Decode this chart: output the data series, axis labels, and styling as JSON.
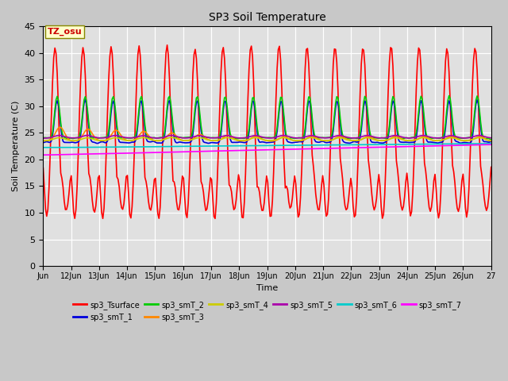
{
  "title": "SP3 Soil Temperature",
  "ylabel": "Soil Temperature (C)",
  "xlabel": "Time",
  "annotation": "TZ_osu",
  "ylim": [
    0,
    45
  ],
  "fig_bg_color": "#c8c8c8",
  "plot_bg_color": "#e0e0e0",
  "legend_entries": [
    "sp3_Tsurface",
    "sp3_smT_1",
    "sp3_smT_2",
    "sp3_smT_3",
    "sp3_smT_4",
    "sp3_smT_5",
    "sp3_smT_6",
    "sp3_smT_7"
  ],
  "line_colors": [
    "#ff0000",
    "#0000dd",
    "#00cc00",
    "#ff8800",
    "#cccc00",
    "#aa00aa",
    "#00cccc",
    "#ff00ff"
  ],
  "x_tick_labels": [
    "Jun",
    "12Jun",
    "13Jun",
    "14Jun",
    "15Jun",
    "16Jun",
    "17Jun",
    "18Jun",
    "19Jun",
    "20Jun",
    "21Jun",
    "22Jun",
    "23Jun",
    "24Jun",
    "25Jun",
    "26Jun",
    "27"
  ],
  "yticks": [
    0,
    5,
    10,
    15,
    20,
    25,
    30,
    35,
    40,
    45
  ]
}
